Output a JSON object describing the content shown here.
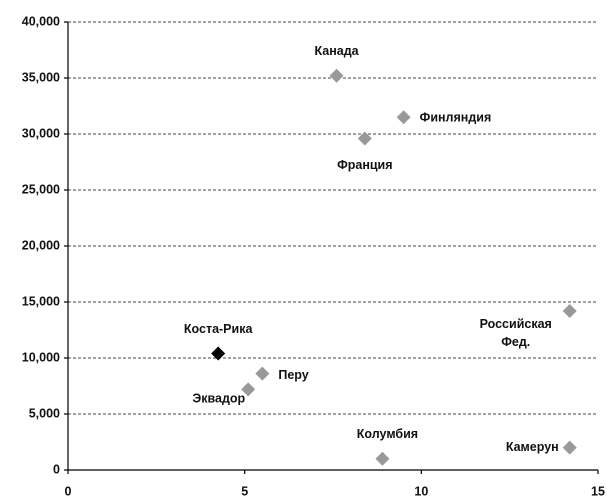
{
  "chart_data": {
    "type": "scatter",
    "point_labels": [
      "Канада",
      "Финляндия",
      "Франция",
      "Российская Фед.",
      "Коста-Рика",
      "Перу",
      "Эквадор",
      "Колумбия",
      "Камерун"
    ],
    "x": [
      7.6,
      9.5,
      8.4,
      14.2,
      4.25,
      5.5,
      5.1,
      8.9,
      14.2
    ],
    "y": [
      35200,
      31500,
      29600,
      14200,
      10400,
      8600,
      7200,
      1000,
      2000
    ],
    "colors": [
      "#999999",
      "#999999",
      "#999999",
      "#999999",
      "#000000",
      "#999999",
      "#999999",
      "#999999",
      "#999999"
    ],
    "xlim": [
      0,
      15
    ],
    "xticks": [
      0,
      5,
      10,
      15
    ],
    "ylim": [
      0,
      40000
    ],
    "yticks": [
      0,
      {
        "value": 5000,
        "label": "5,000"
      },
      {
        "value": 10000,
        "label": "10,000"
      },
      {
        "value": 15000,
        "label": "15,000"
      },
      {
        "value": 20000,
        "label": "20,000"
      },
      {
        "value": 25000,
        "label": "25,000"
      },
      {
        "value": 30000,
        "label": "30,000"
      },
      {
        "value": 35000,
        "label": "35,000"
      },
      {
        "value": 40000,
        "label": "40,000"
      }
    ],
    "grid": true
  }
}
